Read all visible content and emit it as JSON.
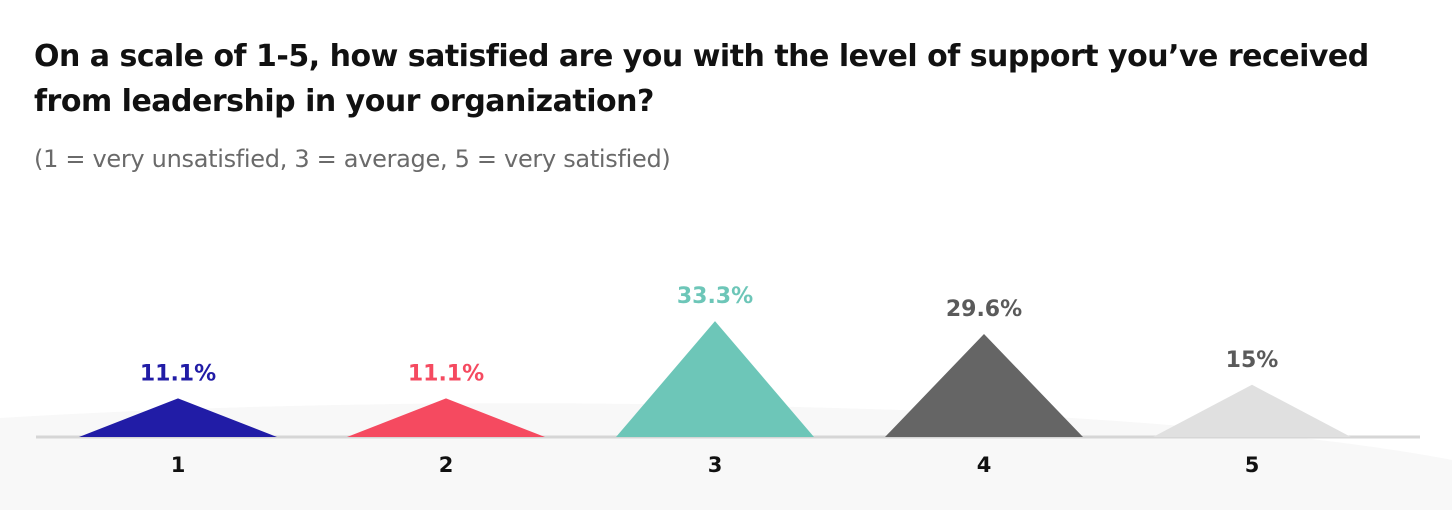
{
  "title": "On a scale of 1-5, how satisfied are you with the level of support you’ve received from leadership in your organization?",
  "subtitle": "(1 = very unsatisfied, 3 = average, 5 = very satisfied)",
  "chart_data": {
    "type": "bar",
    "categories": [
      "1",
      "2",
      "3",
      "4",
      "5"
    ],
    "values": [
      11.1,
      11.1,
      33.3,
      29.6,
      15
    ],
    "labels": [
      "11.1%",
      "11.1%",
      "33.3%",
      "29.6%",
      "15%"
    ],
    "colors": [
      "#211ca6",
      "#f54a60",
      "#6dc6b8",
      "#656565",
      "#e0e0e0"
    ],
    "label_colors": [
      "#211ca6",
      "#f54a60",
      "#6dc6b8",
      "#5a5a5a",
      "#5a5a5a"
    ],
    "shape": "triangle",
    "xlabel": "",
    "ylabel": "",
    "grid": false
  }
}
